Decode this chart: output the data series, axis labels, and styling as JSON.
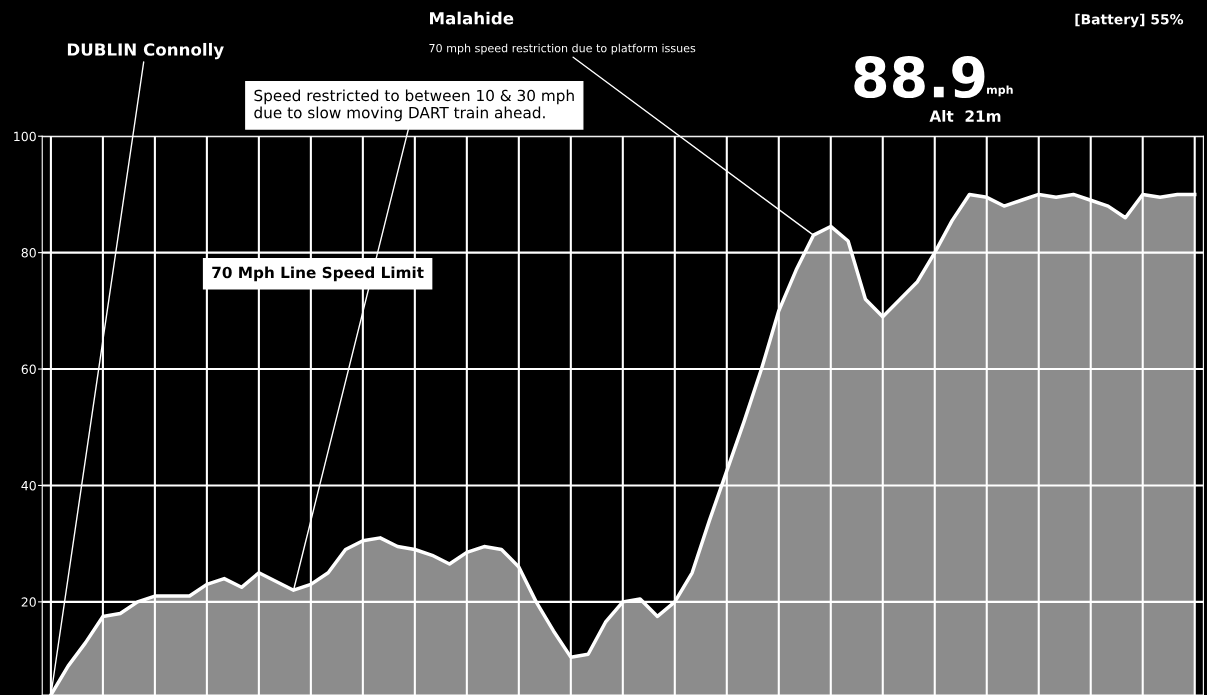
{
  "chart_data": {
    "type": "area",
    "categories": [
      null,
      null,
      null,
      null,
      null,
      null,
      null,
      null,
      null,
      null,
      null,
      null,
      null,
      null,
      null,
      null,
      null,
      null,
      null,
      null,
      null,
      null,
      null,
      null,
      null,
      null,
      null,
      null,
      null,
      null,
      null,
      null,
      null,
      null,
      null,
      null,
      null,
      null,
      null,
      null,
      null,
      null,
      null,
      null,
      null,
      null,
      null,
      null,
      null,
      null,
      null,
      null,
      null,
      null,
      null,
      null,
      null,
      null,
      null,
      null,
      null,
      null,
      null,
      null,
      null,
      null,
      null
    ],
    "series": [
      {
        "color": "#8c8c8c",
        "values": [
          4,
          9,
          13,
          17.5,
          18,
          20,
          21,
          21,
          21,
          23,
          24,
          22.5,
          25,
          23.5,
          22,
          23,
          25,
          29,
          30.5,
          31,
          29.5,
          29,
          28,
          26.5,
          28.5,
          29.5,
          29,
          26,
          20,
          15,
          10.5,
          11,
          16.5,
          20,
          20.5,
          17.5,
          20,
          25,
          34,
          42.5,
          51,
          60,
          70,
          77,
          83,
          84.5,
          82,
          72,
          69,
          72,
          75,
          80,
          85.5,
          90,
          89.5,
          88,
          89,
          90,
          89.5,
          90,
          89,
          88,
          86,
          90,
          89.5,
          90,
          90
        ]
      }
    ],
    "ylim": [
      4,
      100
    ],
    "yticks": [
      20,
      40,
      60,
      80,
      100
    ],
    "grid": true,
    "tick_labels": "y",
    "annotations": [
      "DUBLIN Connolly",
      "Malahide",
      "70 mph speed restriction due to platform issues",
      "Speed restricted to between 10 & 30 mph\ndue to slow moving DART train ahead.",
      "70 Mph Line Speed Limit",
      "88.9",
      "mph",
      "Alt  21m",
      "[Battery] 55%"
    ]
  }
}
